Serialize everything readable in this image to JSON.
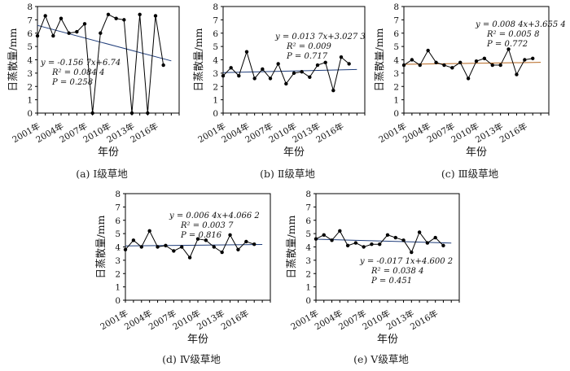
{
  "chart_data": [
    {
      "type": "line",
      "caption": "(a) Ⅰ级草地",
      "ylabel": "日蒸散量/mm",
      "xlabel": "年份",
      "x_tick_labels": [
        "2001年",
        "2004年",
        "2007年",
        "2010年",
        "2013年",
        "2016年"
      ],
      "y_ticks": [
        0,
        1,
        2,
        3,
        4,
        5,
        6,
        7,
        8
      ],
      "ylim": [
        0,
        8
      ],
      "xlim": [
        2001,
        2019
      ],
      "x": [
        2001,
        2002,
        2003,
        2004,
        2005,
        2006,
        2007,
        2008,
        2009,
        2010,
        2011,
        2012,
        2013,
        2014,
        2015,
        2016,
        2017,
        2018
      ],
      "series": [
        {
          "values": [
            5.8,
            7.3,
            5.8,
            7.1,
            6.0,
            6.1,
            6.7,
            0.0,
            6.0,
            7.4,
            7.1,
            7.0,
            0.0,
            7.4,
            0.0,
            7.3,
            3.6
          ],
          "x": [
            2001,
            2002,
            2003,
            2004,
            2005,
            2006,
            2007,
            2008,
            2009,
            2010,
            2011,
            2012,
            2013,
            2014,
            2015,
            2016,
            2017
          ]
        }
      ],
      "trend": {
        "slope": -0.1567,
        "intercept_at_2001": 6.74
      },
      "annotation": [
        "y = -0.156 7x+6.74",
        "R² = 0.084 4",
        "P = 0.258"
      ],
      "colors": {
        "data": "#000000",
        "trend": "#1f3d7a"
      }
    },
    {
      "type": "line",
      "caption": "(b) Ⅱ级草地",
      "ylabel": "日蒸散量/mm",
      "xlabel": "年份",
      "x_tick_labels": [
        "2001年",
        "2004年",
        "2007年",
        "2010年",
        "2013年",
        "2016年"
      ],
      "y_ticks": [
        0,
        1,
        2,
        3,
        4,
        5,
        6,
        7,
        8
      ],
      "ylim": [
        0,
        8
      ],
      "xlim": [
        2001,
        2019
      ],
      "x": [
        2001,
        2002,
        2003,
        2004,
        2005,
        2006,
        2007,
        2008,
        2009,
        2010,
        2011,
        2012,
        2013,
        2014,
        2015,
        2016,
        2017,
        2018
      ],
      "series": [
        {
          "values": [
            2.8,
            3.4,
            2.8,
            4.6,
            2.6,
            3.3,
            2.6,
            3.7,
            2.2,
            3.0,
            3.1,
            2.7,
            3.6,
            3.8,
            1.7,
            4.2,
            3.7
          ],
          "x": [
            2001,
            2002,
            2003,
            2004,
            2005,
            2006,
            2007,
            2008,
            2009,
            2010,
            2011,
            2012,
            2013,
            2014,
            2015,
            2016,
            2017
          ]
        }
      ],
      "trend": {
        "slope": 0.0137,
        "intercept_at_2001": 3.0273
      },
      "annotation": [
        "y = 0.013 7x+3.027 3",
        "R² = 0.009",
        "P = 0.717"
      ],
      "colors": {
        "data": "#000000",
        "trend": "#1f3d7a"
      }
    },
    {
      "type": "line",
      "caption": "(c) Ⅲ级草地",
      "ylabel": "日蒸散量/mm",
      "xlabel": "年份",
      "x_tick_labels": [
        "2001年",
        "2004年",
        "2007年",
        "2010年",
        "2013年",
        "2016年"
      ],
      "y_ticks": [
        0,
        1,
        2,
        3,
        4,
        5,
        6,
        7,
        8
      ],
      "ylim": [
        0,
        8
      ],
      "xlim": [
        2001,
        2019
      ],
      "x": [
        2001,
        2002,
        2003,
        2004,
        2005,
        2006,
        2007,
        2008,
        2009,
        2010,
        2011,
        2012,
        2013,
        2014,
        2015,
        2016,
        2017,
        2018
      ],
      "series": [
        {
          "values": [
            3.6,
            4.0,
            3.6,
            4.7,
            3.8,
            3.6,
            3.4,
            3.8,
            2.6,
            3.9,
            4.1,
            3.6,
            3.6,
            4.8,
            2.9,
            4.0,
            4.1
          ],
          "x": [
            2001,
            2002,
            2003,
            2004,
            2005,
            2006,
            2007,
            2008,
            2009,
            2010,
            2011,
            2012,
            2013,
            2014,
            2015,
            2016,
            2017
          ]
        }
      ],
      "trend": {
        "slope": 0.0084,
        "intercept_at_2001": 3.6554
      },
      "annotation": [
        "y = 0.008 4x+3.655 4",
        "R² = 0.005 8",
        "P = 0.772"
      ],
      "colors": {
        "data": "#000000",
        "trend": "#b5651d"
      }
    },
    {
      "type": "line",
      "caption": "(d) Ⅳ级草地",
      "ylabel": "日蒸散量/mm",
      "xlabel": "年份",
      "x_tick_labels": [
        "2001年",
        "2004年",
        "2007年",
        "2010年",
        "2013年",
        "2016年"
      ],
      "y_ticks": [
        0,
        1,
        2,
        3,
        4,
        5,
        6,
        7,
        8
      ],
      "ylim": [
        0,
        8
      ],
      "xlim": [
        2001,
        2019
      ],
      "x": [
        2001,
        2002,
        2003,
        2004,
        2005,
        2006,
        2007,
        2008,
        2009,
        2010,
        2011,
        2012,
        2013,
        2014,
        2015,
        2016,
        2017,
        2018
      ],
      "series": [
        {
          "values": [
            3.8,
            4.5,
            4.0,
            5.2,
            4.0,
            4.1,
            3.7,
            4.0,
            3.2,
            4.6,
            4.5,
            4.0,
            3.6,
            4.9,
            3.8,
            4.4,
            4.2
          ],
          "x": [
            2001,
            2002,
            2003,
            2004,
            2005,
            2006,
            2007,
            2008,
            2009,
            2010,
            2011,
            2012,
            2013,
            2014,
            2015,
            2016,
            2017
          ]
        }
      ],
      "trend": {
        "slope": 0.0064,
        "intercept_at_2001": 4.0662
      },
      "annotation": [
        "y = 0.006 4x+4.066 2",
        "R² = 0.003 7",
        "P = 0.816"
      ],
      "colors": {
        "data": "#000000",
        "trend": "#1f3d7a"
      }
    },
    {
      "type": "line",
      "caption": "(e) Ⅴ级草地",
      "ylabel": "日蒸散量/mm",
      "xlabel": "年份",
      "x_tick_labels": [
        "2001年",
        "2004年",
        "2007年",
        "2010年",
        "2013年",
        "2016年"
      ],
      "y_ticks": [
        0,
        1,
        2,
        3,
        4,
        5,
        6,
        7,
        8
      ],
      "ylim": [
        0,
        8
      ],
      "xlim": [
        2001,
        2019
      ],
      "x": [
        2001,
        2002,
        2003,
        2004,
        2005,
        2006,
        2007,
        2008,
        2009,
        2010,
        2011,
        2012,
        2013,
        2014,
        2015,
        2016,
        2017,
        2018
      ],
      "series": [
        {
          "values": [
            4.6,
            4.9,
            4.5,
            5.2,
            4.1,
            4.3,
            4.0,
            4.2,
            4.2,
            4.9,
            4.7,
            4.5,
            3.6,
            5.1,
            4.3,
            4.7,
            4.1
          ],
          "x": [
            2001,
            2002,
            2003,
            2004,
            2005,
            2006,
            2007,
            2008,
            2009,
            2010,
            2011,
            2012,
            2013,
            2014,
            2015,
            2016,
            2017
          ]
        }
      ],
      "trend": {
        "slope": -0.0171,
        "intercept_at_2001": 4.6002
      },
      "annotation": [
        "y = -0.017 1x+4.600 2",
        "R² = 0.038 4",
        "P = 0.451"
      ],
      "colors": {
        "data": "#000000",
        "trend": "#1f3d7a"
      }
    }
  ]
}
